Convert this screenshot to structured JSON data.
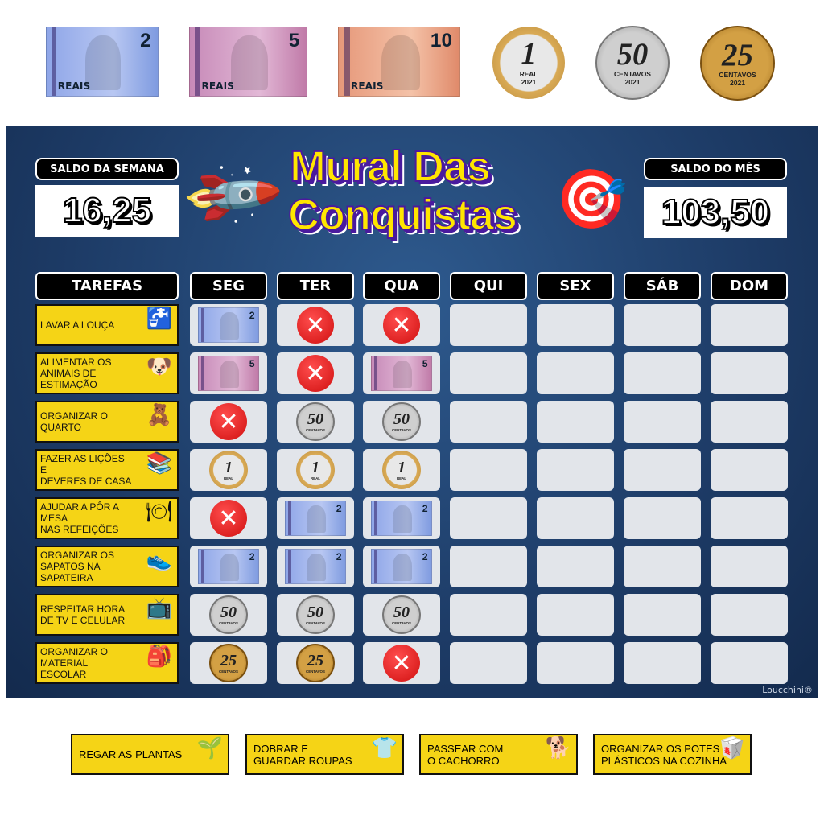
{
  "money_legend": [
    {
      "type": "bill",
      "value": "2",
      "label": "REAIS",
      "color": "#9fb3ec"
    },
    {
      "type": "bill",
      "value": "5",
      "label": "REAIS",
      "color": "#d6a0c8"
    },
    {
      "type": "bill",
      "value": "10",
      "label": "REAIS",
      "color": "#eea88a"
    },
    {
      "type": "coin",
      "value": "1",
      "label": "REAL",
      "year": "2021"
    },
    {
      "type": "coin",
      "value": "50",
      "label": "CENTAVOS",
      "year": "2021"
    },
    {
      "type": "coin",
      "value": "25",
      "label": "CENTAVOS",
      "year": "2021"
    }
  ],
  "board": {
    "title_line1": "Mural Das",
    "title_line2": "Conquistas",
    "week_balance_label": "SALDO DA SEMANA",
    "week_balance": "16,25",
    "month_balance_label": "SALDO DO MÊS",
    "month_balance": "103,50",
    "tasks_header": "TAREFAS",
    "days": [
      "SEG",
      "TER",
      "QUA",
      "QUI",
      "SEX",
      "SÁB",
      "DOM"
    ],
    "watermark": "Loucchini®",
    "rows": [
      {
        "task": "LAVAR A LOUÇA",
        "icon": "sink-icon",
        "cells": [
          "2",
          "x",
          "x",
          "",
          "",
          "",
          ""
        ]
      },
      {
        "task": "ALIMENTAR OS\nANIMAIS DE\nESTIMAÇÃO",
        "icon": "pets-icon",
        "cells": [
          "5",
          "x",
          "5",
          "",
          "",
          "",
          ""
        ]
      },
      {
        "task": "ORGANIZAR O\nQUARTO",
        "icon": "shelf-icon",
        "cells": [
          "x",
          "50c",
          "50c",
          "",
          "",
          "",
          ""
        ]
      },
      {
        "task": "FAZER AS LIÇÕES E\nDEVERES DE CASA",
        "icon": "study-desk-icon",
        "cells": [
          "1c",
          "1c",
          "1c",
          "",
          "",
          "",
          ""
        ]
      },
      {
        "task": "AJUDAR A PÔR A MESA\nNAS REFEIÇÕES",
        "icon": "plate-cutlery-icon",
        "cells": [
          "x",
          "2",
          "2",
          "",
          "",
          "",
          ""
        ]
      },
      {
        "task": "ORGANIZAR OS\nSAPATOS NA\nSAPATEIRA",
        "icon": "shoe-rack-icon",
        "cells": [
          "2",
          "2",
          "2",
          "",
          "",
          "",
          ""
        ]
      },
      {
        "task": "RESPEITAR HORA\nDE TV E CELULAR",
        "icon": "tv-icon",
        "cells": [
          "50c",
          "50c",
          "50c",
          "",
          "",
          "",
          ""
        ]
      },
      {
        "task": "ORGANIZAR O\nMATERIAL ESCOLAR",
        "icon": "backpack-icon",
        "cells": [
          "25c",
          "25c",
          "x",
          "",
          "",
          "",
          ""
        ]
      }
    ]
  },
  "extra_tasks": [
    {
      "label": "REGAR AS PLANTAS",
      "icon": "watering-can-icon"
    },
    {
      "label": "DOBRAR E\nGUARDAR ROUPAS",
      "icon": "folded-clothes-icon"
    },
    {
      "label": "PASSEAR COM\nO CACHORRO",
      "icon": "dog-icon"
    },
    {
      "label": "ORGANIZAR OS POTES\nPLÁSTICOS NA COZINHA",
      "icon": "containers-icon"
    }
  ],
  "colors": {
    "board": "#1d3b66",
    "task_yellow": "#f5d416",
    "title_yellow": "#ffe600",
    "title_purple": "#4a1a9e",
    "cross_red": "#d01010"
  }
}
